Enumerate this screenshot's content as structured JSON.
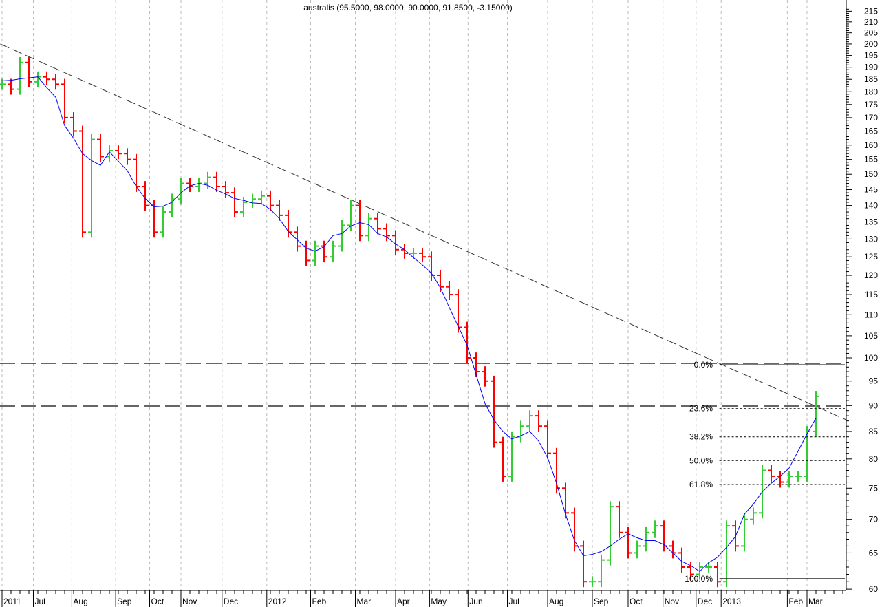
{
  "chart_data": {
    "type": "bar",
    "title": "australis (95.5000, 98.0000, 90.0000, 91.8500, -3.15000)",
    "ylim": [
      60,
      215
    ],
    "yscale": "log",
    "y_ticks": [
      60,
      65,
      70,
      75,
      80,
      85,
      90,
      95,
      100,
      105,
      110,
      115,
      120,
      125,
      130,
      135,
      140,
      145,
      150,
      155,
      160,
      165,
      170,
      175,
      180,
      185,
      190,
      195,
      200,
      205,
      210,
      215
    ],
    "x_labels": [
      {
        "label": "2011",
        "week": 0
      },
      {
        "label": "Jul",
        "week": 3.5
      },
      {
        "label": "Aug",
        "week": 7.8
      },
      {
        "label": "Sep",
        "week": 12.7
      },
      {
        "label": "Oct",
        "week": 16.5
      },
      {
        "label": "Nov",
        "week": 20
      },
      {
        "label": "Dec",
        "week": 24.6
      },
      {
        "label": "2012",
        "week": 29.6
      },
      {
        "label": "Feb",
        "week": 34.5
      },
      {
        "label": "Mar",
        "week": 39.5
      },
      {
        "label": "Apr",
        "week": 44
      },
      {
        "label": "May",
        "week": 47.8
      },
      {
        "label": "Jun",
        "week": 52.1
      },
      {
        "label": "Jul",
        "week": 56.5
      },
      {
        "label": "Aug",
        "week": 61
      },
      {
        "label": "Sep",
        "week": 66
      },
      {
        "label": "Oct",
        "week": 70
      },
      {
        "label": "Nov",
        "week": 73.9
      },
      {
        "label": "Dec",
        "week": 77.6
      },
      {
        "label": "2013",
        "week": 80.4
      },
      {
        "label": "Feb",
        "week": 87.8
      },
      {
        "label": "Mar",
        "week": 90
      }
    ],
    "closes": [
      183,
      181,
      192,
      184,
      186,
      185,
      183,
      170,
      165,
      132,
      162,
      156,
      158,
      157,
      155,
      146,
      140,
      132,
      138,
      142,
      147,
      146,
      147,
      149,
      146,
      144,
      138,
      141,
      142,
      143,
      140,
      137,
      132,
      128,
      124,
      128,
      125,
      128,
      134,
      140,
      131,
      136,
      133,
      131,
      127,
      126,
      126,
      125,
      120,
      117,
      115,
      107,
      100,
      97,
      95,
      83,
      77,
      84,
      86,
      88,
      86,
      81,
      75,
      71,
      66,
      61,
      61,
      64,
      72,
      68,
      65,
      66,
      68,
      69,
      66,
      65,
      63,
      62,
      63,
      63,
      61,
      69,
      66,
      70,
      71,
      78,
      77,
      76,
      77,
      77,
      85,
      91.85
    ],
    "colors": {
      "up": "#33cc33",
      "down": "#ff0000",
      "ma": "#0000ff"
    },
    "trendline": {
      "start": {
        "week": -0.2,
        "value": 200
      },
      "end": {
        "week": 94.4,
        "value": 87.2
      }
    },
    "horizontal_lines": [
      98.8,
      89.9
    ],
    "fibonacci": {
      "start_week": 80.2,
      "levels": [
        {
          "label": "0.0%",
          "value": 98.5
        },
        {
          "label": "23.6%",
          "value": 89.4
        },
        {
          "label": "38.2%",
          "value": 84.0
        },
        {
          "label": "50.0%",
          "value": 79.7
        },
        {
          "label": "61.8%",
          "value": 75.6
        },
        {
          "label": "100.0%",
          "value": 61.4
        }
      ]
    }
  }
}
